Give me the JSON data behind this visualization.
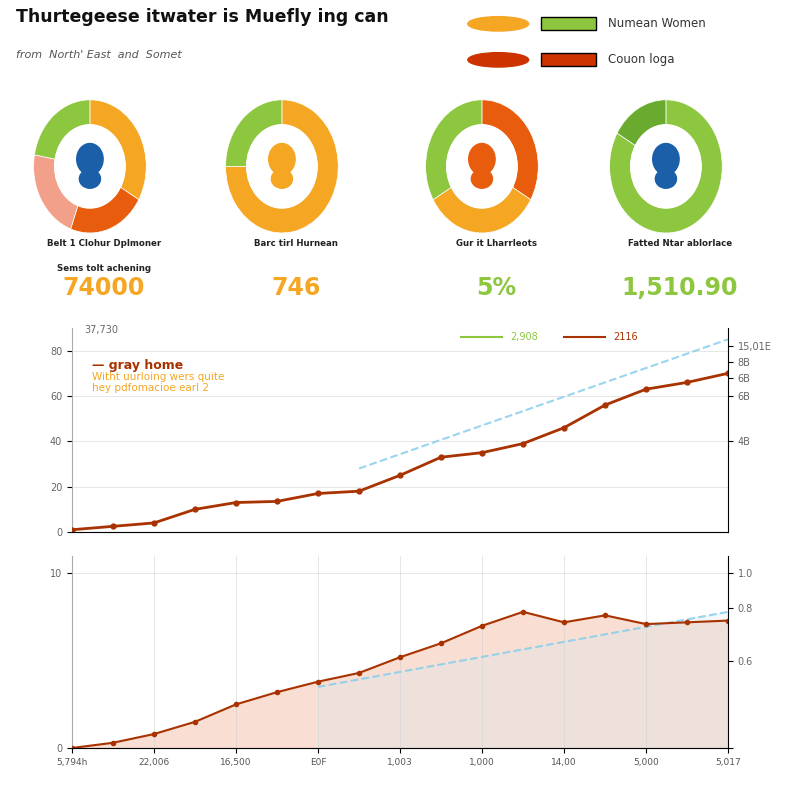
{
  "title_main": "Thurtegeese itwater is Muefly ing can",
  "title_sub": "from  North' East  and  Somet",
  "legend_items": [
    {
      "label": "Numean Women",
      "circle_color": "#f5a623",
      "rect_color": "#8dc63f"
    },
    {
      "label": "Couon loga",
      "circle_color": "#cc3300",
      "rect_color": "#cc3300"
    }
  ],
  "kpi_items": [
    {
      "label1": "Belt 1 Clohur Dplmoner",
      "label2": "Sems tolt achening",
      "value": "74000",
      "value_color": "#f5a623",
      "ring_colors": [
        "#f5a623",
        "#e85c0d",
        "#f2a08a",
        "#8dc63f"
      ],
      "ring_angles": [
        0,
        120,
        200,
        280,
        360
      ],
      "icon_color": "#1a5fa8"
    },
    {
      "label1": "Barc tirl Hurnean",
      "label2": "",
      "value": "746",
      "value_color": "#f5a623",
      "ring_colors": [
        "#f5a623",
        "#8dc63f"
      ],
      "ring_angles": [
        0,
        270,
        360
      ],
      "icon_color": "#f5a623"
    },
    {
      "label1": "Gur it Lharrleots",
      "label2": "",
      "value": "5%",
      "value_color": "#8dc63f",
      "ring_colors": [
        "#e85c0d",
        "#f5a623",
        "#8dc63f"
      ],
      "ring_angles": [
        0,
        120,
        240,
        360
      ],
      "icon_color": "#e85c0d"
    },
    {
      "label1": "Fatted Ntar ablorlace",
      "label2": "",
      "value": "1,510.90",
      "value_color": "#8dc63f",
      "ring_colors": [
        "#8dc63f",
        "#6aaa2e"
      ],
      "ring_angles": [
        0,
        300,
        360
      ],
      "icon_color": "#1a5fa8"
    }
  ],
  "top_chart": {
    "series_color": "#a83200",
    "series_x": [
      0,
      1,
      2,
      3,
      4,
      5,
      6,
      7,
      8,
      9,
      10,
      11,
      12,
      13,
      14,
      15,
      16
    ],
    "series_y": [
      1,
      2.5,
      4,
      10,
      13,
      13.5,
      17,
      18,
      25,
      33,
      35,
      39,
      46,
      56,
      63,
      66,
      70
    ],
    "trend_x": [
      7,
      16
    ],
    "trend_y": [
      28,
      85
    ],
    "trend_color": "#87ceeb",
    "ylim": [
      0,
      90
    ],
    "yticks_left": [
      0,
      20,
      40,
      60,
      80
    ],
    "ytick_labels_left": [
      "0",
      "20",
      "40",
      "60",
      "80"
    ],
    "yticks_right": [
      40,
      60,
      68,
      75,
      82
    ],
    "ytick_labels_right": [
      "4B",
      "6B",
      "6B",
      "8B",
      "15,01E"
    ],
    "label_37730": "37,730",
    "annotation_title": "gray home",
    "annotation_sub": "Witht uurloing wers quite\nhey pdfomacioe earl 2",
    "legend_line1_label": "2,908",
    "legend_line2_label": "2116",
    "legend_line1_color": "#8dc63f",
    "legend_line2_color": "#a83200"
  },
  "bottom_chart": {
    "series_color": "#a83200",
    "series_x": [
      0,
      1,
      2,
      3,
      4,
      5,
      6,
      7,
      8,
      9,
      10,
      11,
      12,
      13,
      14,
      15,
      16
    ],
    "series_y": [
      0,
      0.3,
      0.8,
      1.5,
      2.5,
      3.2,
      3.8,
      4.3,
      5.2,
      6.0,
      7.0,
      7.8,
      7.2,
      7.6,
      7.1,
      7.2,
      7.3
    ],
    "fill_color": "#f5c6b0",
    "trend_x": [
      6,
      16
    ],
    "trend_y": [
      3.5,
      7.8
    ],
    "trend_color": "#87ceeb",
    "fill_trend_color": "#d0e8f5",
    "ylim": [
      0,
      11
    ],
    "yticks_left": [
      0,
      10
    ],
    "ytick_labels_left": [
      "0",
      "10"
    ],
    "yticks_right": [
      0,
      5,
      8,
      10
    ],
    "ytick_labels_right": [
      "",
      "0.6",
      "0.8",
      "1.0"
    ]
  },
  "x_labels": [
    "5,794h",
    "22,006",
    "16,500",
    "E0F",
    "1,003",
    "1,000",
    "14,00",
    "5,000",
    "5,017"
  ],
  "x_ticks": [
    0,
    2,
    4,
    6,
    8,
    10,
    12,
    14,
    16
  ],
  "background_color": "#ffffff",
  "grid_color": "#cccccc"
}
